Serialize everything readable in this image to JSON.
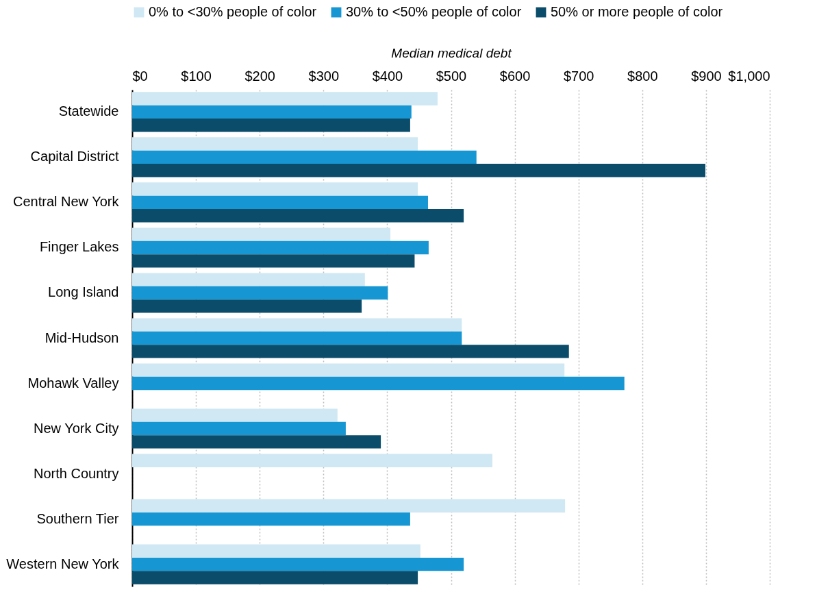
{
  "chart_data": {
    "type": "bar",
    "orientation": "horizontal",
    "xlabel": "Median medical debt",
    "categories": [
      "Statewide",
      "Capital District",
      "Central New York",
      "Finger Lakes",
      "Long Island",
      "Mid-Hudson",
      "Mohawk Valley",
      "New York City",
      "North Country",
      "Southern Tier",
      "Western New York"
    ],
    "series": [
      {
        "name": "0% to <30% people of color",
        "color": "#cfe8f3",
        "values": [
          479,
          448,
          448,
          405,
          365,
          517,
          678,
          322,
          565,
          679,
          452
        ]
      },
      {
        "name": "30% to <50% people of color",
        "color": "#1696d2",
        "values": [
          438,
          540,
          464,
          465,
          401,
          517,
          772,
          335,
          null,
          436,
          520
        ]
      },
      {
        "name": "50% or more people of color",
        "color": "#0a4c6a",
        "values": [
          436,
          899,
          520,
          443,
          360,
          685,
          null,
          390,
          null,
          null,
          448
        ]
      }
    ],
    "xlim": [
      0,
      1000
    ],
    "xticks": [
      {
        "value": 0,
        "label": "$0"
      },
      {
        "value": 100,
        "label": "$100"
      },
      {
        "value": 200,
        "label": "$200"
      },
      {
        "value": 300,
        "label": "$300"
      },
      {
        "value": 400,
        "label": "$400"
      },
      {
        "value": 500,
        "label": "$500"
      },
      {
        "value": 600,
        "label": "$600"
      },
      {
        "value": 700,
        "label": "$700"
      },
      {
        "value": 800,
        "label": "$800"
      },
      {
        "value": 900,
        "label": "$900"
      },
      {
        "value": 1000,
        "label": "$1,000"
      }
    ],
    "grid": "x",
    "legend": "top"
  }
}
